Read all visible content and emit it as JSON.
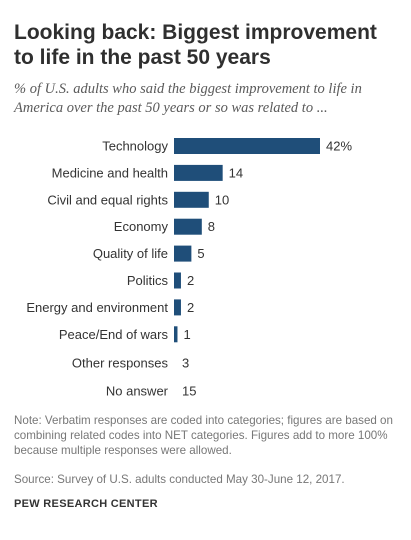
{
  "chart_data": {
    "type": "bar",
    "orientation": "horizontal",
    "title": "Looking back: Biggest improvement to life in the past 50 years",
    "subtitle": "% of U.S. adults who said the biggest improvement to life in America over the past 50 years or so was related to ...",
    "categories": [
      "Technology",
      "Medicine and health",
      "Civil and equal rights",
      "Economy",
      "Quality of life",
      "Politics",
      "Energy and environment",
      "Peace/End of wars"
    ],
    "values": [
      42,
      14,
      10,
      8,
      5,
      2,
      2,
      1
    ],
    "value_labels": [
      "42%",
      "14",
      "10",
      "8",
      "5",
      "2",
      "2",
      "1"
    ],
    "extra_rows": [
      {
        "label": "Other responses",
        "value": 3,
        "value_label": "3"
      },
      {
        "label": "No answer",
        "value": 15,
        "value_label": "15"
      }
    ],
    "xlim": [
      0,
      42
    ],
    "grid": false,
    "bar_color": "#1f4e79"
  },
  "footer": {
    "note": "Note: Verbatim responses are coded into categories; figures are based on combining related codes into NET categories. Figures add to more 100% because multiple responses were allowed.",
    "source": "Source: Survey of U.S. adults conducted May 30-June 12, 2017.",
    "brand": "PEW RESEARCH CENTER"
  }
}
